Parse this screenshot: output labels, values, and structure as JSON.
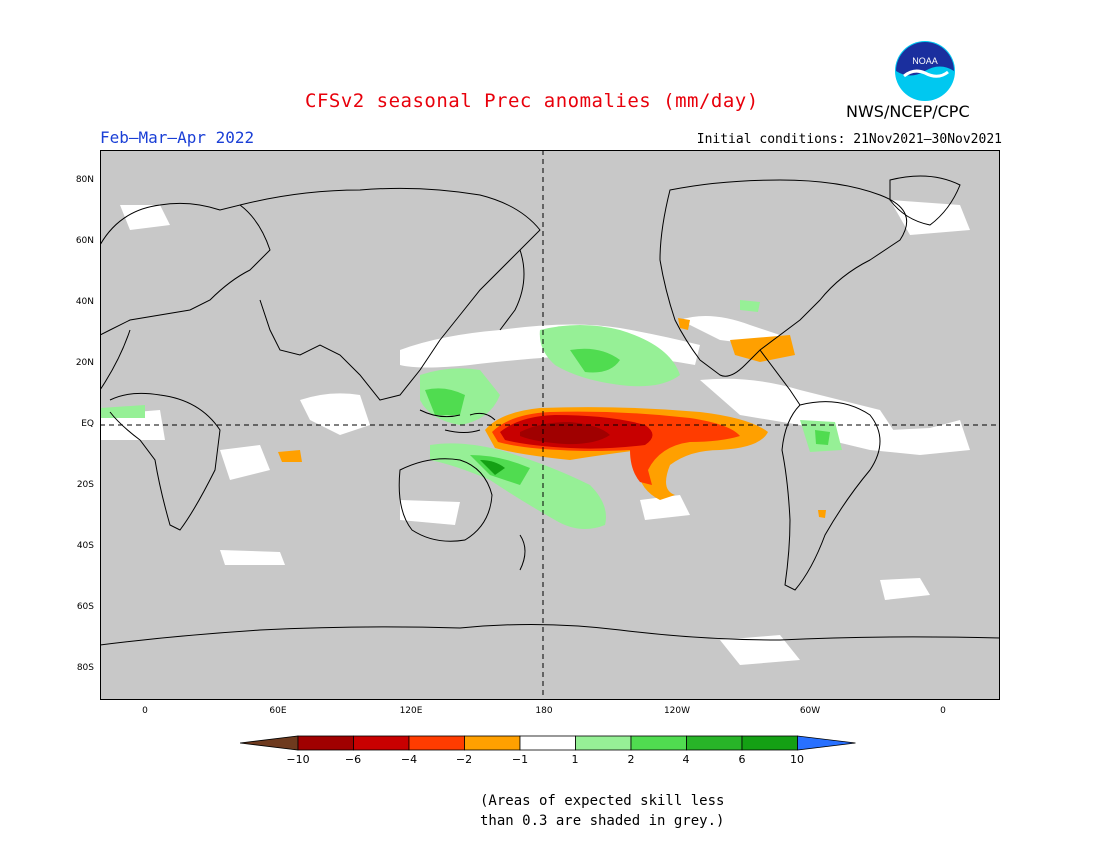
{
  "header": {
    "title": "CFSv2 seasonal Prec anomalies (mm/day)",
    "period": "Feb–Mar–Apr 2022",
    "initial_conditions": "Initial conditions: 21Nov2021–30Nov2021",
    "agency": "NWS/NCEP/CPC",
    "logo_text": "NOAA"
  },
  "map": {
    "lat_labels": [
      "80N",
      "60N",
      "40N",
      "20N",
      "EQ",
      "20S",
      "40S",
      "60S",
      "80S"
    ],
    "lon_labels": [
      "0",
      "60E",
      "120E",
      "180",
      "120W",
      "60W",
      "0"
    ],
    "colors": {
      "ocean_grey": "#c8c8c8",
      "land_grey": "#c8c8c8",
      "dark_red": "#b40000",
      "red": "#e81400",
      "orange_red": "#ff3c00",
      "orange": "#ffa000",
      "light_green": "#96f096",
      "green": "#50dc50",
      "dark_green": "#14a014"
    }
  },
  "colorbar": {
    "labels": [
      "−10",
      "−6",
      "−4",
      "−2",
      "−1",
      "1",
      "2",
      "4",
      "6",
      "10"
    ],
    "colors": [
      "#6e3a1e",
      "#a00000",
      "#c80000",
      "#ff3c00",
      "#ffa000",
      "#ffffff",
      "#96f096",
      "#50dc50",
      "#28b428",
      "#14a014",
      "#2870ff"
    ]
  },
  "footnote": {
    "line1": "(Areas of expected skill less",
    "line2": "than 0.3 are shaded in grey.)"
  }
}
